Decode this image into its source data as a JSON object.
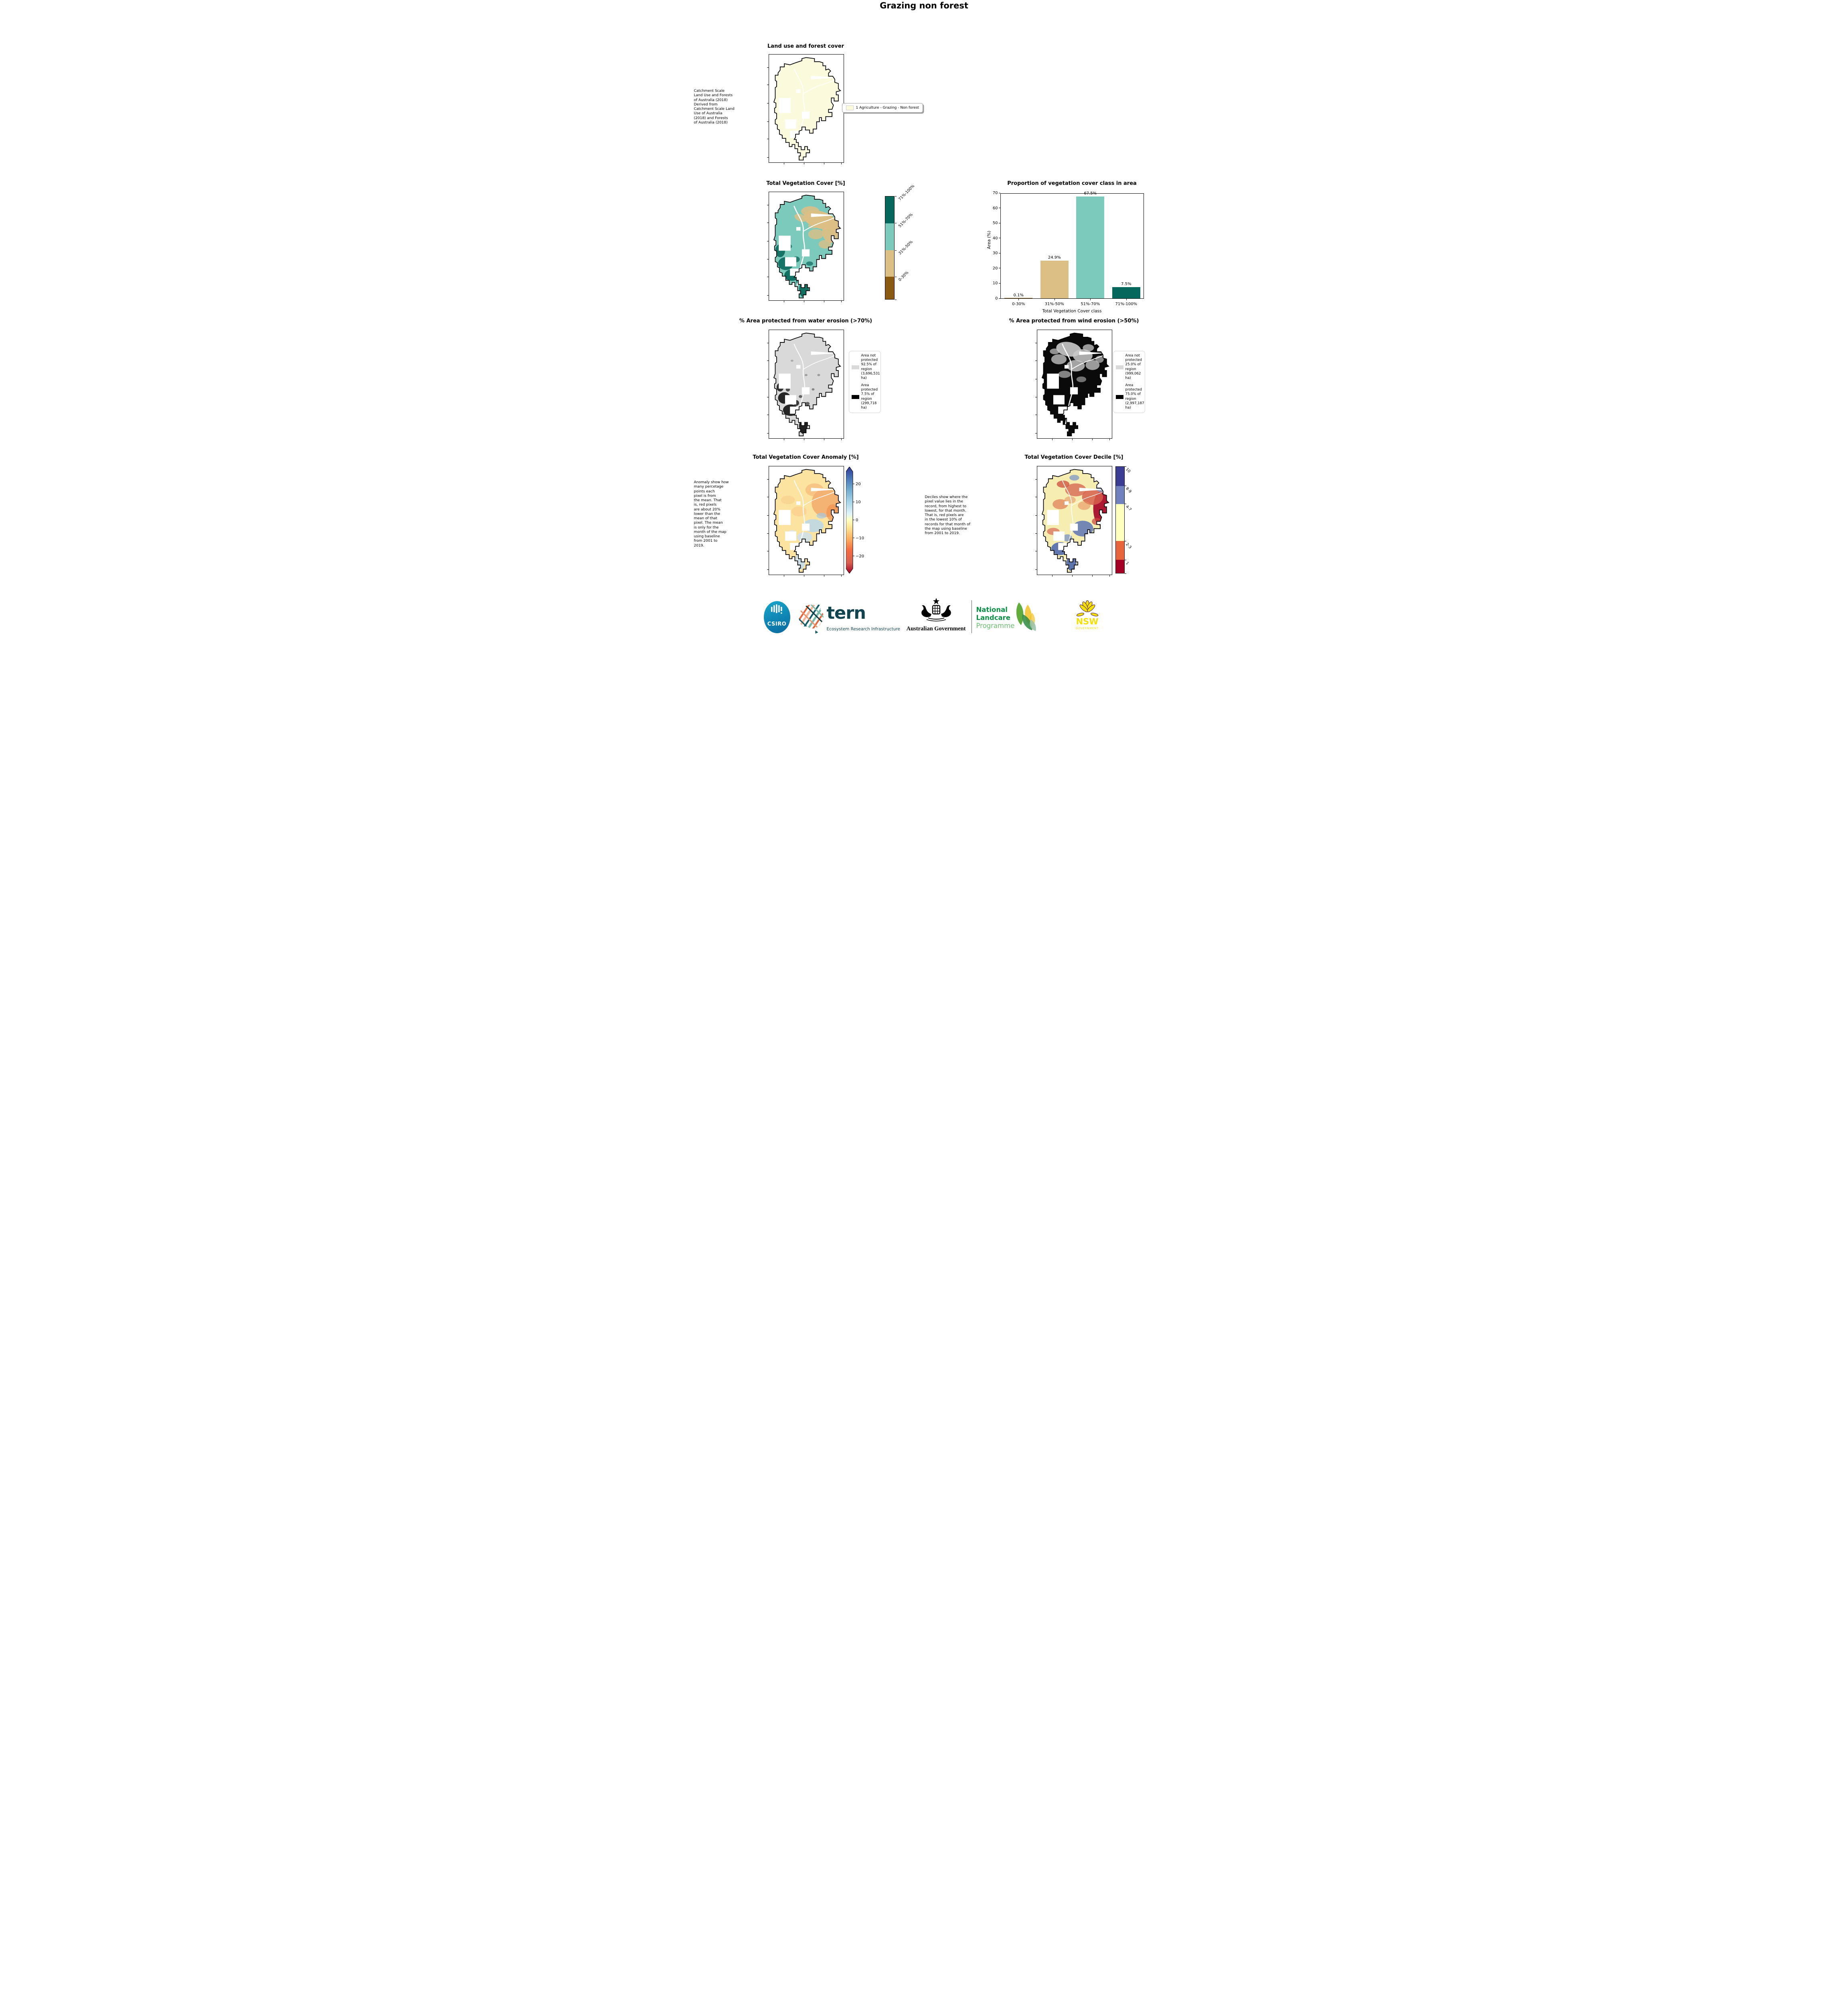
{
  "page_title": "Grazing non forest",
  "land_use": {
    "title": "Land use and forest cover",
    "note": " Catchment Scale\nLand Use and Forests\nof Australia (2018)\nDerived from\nCatchment Scale Land\nUse of Australia\n(2018) and Forests\nof Australia (2018)",
    "legend": {
      "label": "1 Agriculture - Grazing - Non forest",
      "swatch_color": "#fbfadc"
    }
  },
  "veg_cover": {
    "title": "Total Vegetation Cover [%]",
    "colorbar": {
      "classes": [
        {
          "label": "71%-100%",
          "color": "#06685c"
        },
        {
          "label": "51%-70%",
          "color": "#7ccabc"
        },
        {
          "label": "31%-50%",
          "color": "#dcbf85"
        },
        {
          "label": "0-30%",
          "color": "#8a5a12"
        }
      ]
    }
  },
  "chart_data": {
    "type": "bar",
    "title": "Proportion of vegetation cover class in area",
    "categories": [
      "0-30%",
      "31%-50%",
      "51%-70%",
      "71%-100%"
    ],
    "values": [
      0.1,
      24.9,
      67.5,
      7.5
    ],
    "value_labels": [
      "0.1%",
      "24.9%",
      "67.5%",
      "7.5%"
    ],
    "bar_colors": [
      "#8a5a12",
      "#dcbf85",
      "#7ccabc",
      "#06685c"
    ],
    "xlabel": "Total Vegetation Cover class",
    "ylabel": "Area (%)",
    "ylim": [
      0,
      70
    ],
    "yticks": [
      0,
      10,
      20,
      30,
      40,
      50,
      60,
      70
    ],
    "grid": false,
    "legend_position": "none"
  },
  "water_erosion": {
    "title": "% Area protected from water erosion (>70%)",
    "legend": [
      {
        "label": "Area not\nprotected\n92.5% of\nregion\n(3,696,531\nha)",
        "swatch_color": "#d9d9d9"
      },
      {
        "label": "Area\nprotected\n7.5% of\nregion\n(299,718\nha)",
        "swatch_color": "#000000"
      }
    ]
  },
  "wind_erosion": {
    "title": "% Area protected from wind erosion (>50%)",
    "legend": [
      {
        "label": "Area not\nprotected\n25.0% of\nregion\n(999,062\nha)",
        "swatch_color": "#d9d9d9"
      },
      {
        "label": "Area\nprotected\n75.0% of\nregion\n(2,997,187\nha)",
        "swatch_color": "#000000"
      }
    ]
  },
  "anomaly": {
    "title": "Total Vegetation Cover Anomaly [%]",
    "note": "Anomaly show how\nmany percetage\npoints each\npixel is from\nthe mean. That\nis, red pixels\nare about 20%\nlower than the\nmean of that\npixel. The mean\nis only for the\nmonth of the map\nusing baseline\nfrom 2001 to\n2019.",
    "colorbar_ticks": [
      "20",
      "10",
      "0",
      "−10",
      "−20"
    ]
  },
  "decile": {
    "title": "Total Vegetation Cover Decile [%]",
    "note": "Deciles show where the\npixel value lies in the\nrecord, from highest to\nlowest, for that month.\nThat is, red pixels are\nin the lowest 10% of\nrecords for that month of\nthe map using baseline\nfrom 2001 to 2019.",
    "colorbar": {
      "classes": [
        {
          "label": "10",
          "color": "#3b3d94"
        },
        {
          "label": "8-9",
          "color": "#7081bd"
        },
        {
          "label": "4-7",
          "color": "#ffffbe"
        },
        {
          "label": "2-3",
          "color": "#e8653c"
        },
        {
          "label": "1",
          "color": "#a50026"
        }
      ]
    }
  },
  "footer": {
    "csiro_label": "CSIRO",
    "tern_label": "tern",
    "tern_sub": "Ecosystem Research Infrastructure",
    "aus_gov_label": "Australian Government",
    "landcare_line1": "National",
    "landcare_line2": "Landcare",
    "landcare_line3": "Programme",
    "nsw_label": "NSW",
    "nsw_sub": "GOVERNMENT",
    "colors": {
      "tern_teal": "#10454f",
      "landcare_green": "#0a9244",
      "landcare_light_green": "#6abf6e",
      "nsw_purple": "#451559",
      "nsw_yellow": "#f5e003"
    }
  }
}
